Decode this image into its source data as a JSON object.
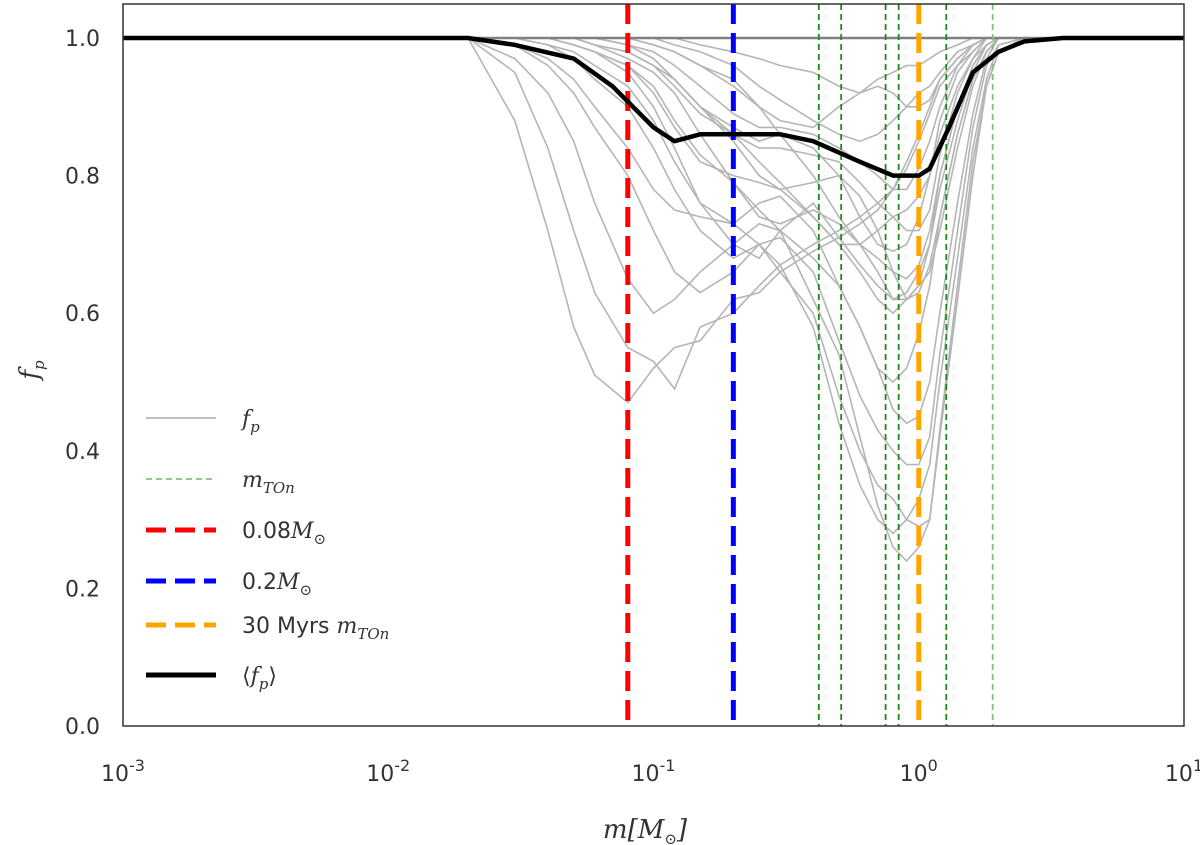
{
  "chart_data": {
    "type": "line",
    "title": "",
    "xlabel": {
      "main": "m[M",
      "sub": "⊙",
      "close": "]"
    },
    "ylabel": {
      "main": "f",
      "sub": "p"
    },
    "xscale": "log",
    "xlim": [
      0.001,
      10
    ],
    "ylim": [
      0.0,
      1.05
    ],
    "grid": false,
    "legend_position": "lower-left",
    "xticks": [
      {
        "value": 0.001,
        "base": "10",
        "exp": "-3"
      },
      {
        "value": 0.01,
        "base": "10",
        "exp": "-2"
      },
      {
        "value": 0.1,
        "base": "10",
        "exp": "-1"
      },
      {
        "value": 1,
        "base": "10",
        "exp": "0"
      },
      {
        "value": 10,
        "base": "10",
        "exp": "1"
      }
    ],
    "yticks": [
      {
        "value": 0.0,
        "label": "0.0"
      },
      {
        "value": 0.2,
        "label": "0.2"
      },
      {
        "value": 0.4,
        "label": "0.4"
      },
      {
        "value": 0.6,
        "label": "0.6"
      },
      {
        "value": 0.8,
        "label": "0.8"
      },
      {
        "value": 1.0,
        "label": "1.0"
      }
    ],
    "x": [
      0.001,
      0.01,
      0.02,
      0.03,
      0.04,
      0.05,
      0.06,
      0.08,
      0.1,
      0.12,
      0.15,
      0.2,
      0.25,
      0.3,
      0.4,
      0.5,
      0.6,
      0.7,
      0.8,
      0.9,
      1.0,
      1.1,
      1.2,
      1.4,
      1.6,
      1.8,
      2.0,
      2.5,
      3.0,
      4.0,
      10.0
    ],
    "individual_series": [
      [
        1,
        1,
        1,
        0.88,
        0.72,
        0.58,
        0.51,
        0.47,
        0.52,
        0.55,
        0.56,
        0.62,
        0.63,
        0.66,
        0.69,
        0.71,
        0.73,
        0.75,
        0.78,
        0.82,
        0.86,
        0.9,
        0.94,
        0.97,
        0.99,
        1,
        1,
        1,
        1,
        1,
        1
      ],
      [
        1,
        1,
        1,
        0.95,
        0.84,
        0.72,
        0.63,
        0.55,
        0.53,
        0.49,
        0.58,
        0.6,
        0.64,
        0.67,
        0.7,
        0.72,
        0.74,
        0.76,
        0.78,
        0.81,
        0.85,
        0.89,
        0.93,
        0.96,
        0.98,
        1,
        1,
        1,
        1,
        1,
        1
      ],
      [
        1,
        1,
        1,
        0.97,
        0.92,
        0.85,
        0.76,
        0.65,
        0.6,
        0.62,
        0.66,
        0.7,
        0.73,
        0.72,
        0.62,
        0.54,
        0.42,
        0.32,
        0.26,
        0.24,
        0.26,
        0.3,
        0.42,
        0.62,
        0.8,
        0.93,
        0.98,
        1,
        1,
        1,
        1
      ],
      [
        1,
        1,
        1,
        0.99,
        0.96,
        0.92,
        0.87,
        0.8,
        0.72,
        0.66,
        0.63,
        0.66,
        0.7,
        0.67,
        0.58,
        0.44,
        0.35,
        0.3,
        0.28,
        0.3,
        0.33,
        0.38,
        0.5,
        0.68,
        0.84,
        0.94,
        0.99,
        1,
        1,
        1,
        1
      ],
      [
        1,
        1,
        1,
        0.99,
        0.97,
        0.94,
        0.9,
        0.84,
        0.78,
        0.75,
        0.74,
        0.73,
        0.7,
        0.66,
        0.6,
        0.48,
        0.4,
        0.35,
        0.33,
        0.3,
        0.29,
        0.3,
        0.43,
        0.64,
        0.82,
        0.93,
        0.98,
        1,
        1,
        1,
        1
      ],
      [
        1,
        1,
        1,
        1,
        0.99,
        0.97,
        0.94,
        0.9,
        0.84,
        0.78,
        0.72,
        0.68,
        0.7,
        0.71,
        0.66,
        0.56,
        0.48,
        0.43,
        0.4,
        0.38,
        0.38,
        0.42,
        0.54,
        0.72,
        0.87,
        0.96,
        0.99,
        1,
        1,
        1,
        1
      ],
      [
        1,
        1,
        1,
        1,
        0.99,
        0.98,
        0.96,
        0.93,
        0.88,
        0.82,
        0.76,
        0.73,
        0.76,
        0.77,
        0.72,
        0.64,
        0.58,
        0.52,
        0.46,
        0.44,
        0.45,
        0.5,
        0.6,
        0.76,
        0.89,
        0.97,
        1,
        1,
        1,
        1,
        1
      ],
      [
        1,
        1,
        1,
        1,
        1,
        0.99,
        0.98,
        0.96,
        0.92,
        0.87,
        0.82,
        0.8,
        0.79,
        0.78,
        0.74,
        0.7,
        0.66,
        0.62,
        0.6,
        0.62,
        0.64,
        0.66,
        0.72,
        0.84,
        0.93,
        0.98,
        1,
        1,
        1,
        1,
        1
      ],
      [
        1,
        1,
        1,
        1,
        1,
        0.99,
        0.98,
        0.95,
        0.9,
        0.84,
        0.76,
        0.7,
        0.68,
        0.72,
        0.76,
        0.71,
        0.67,
        0.64,
        0.62,
        0.63,
        0.66,
        0.7,
        0.78,
        0.88,
        0.95,
        0.99,
        1,
        1,
        1,
        1,
        1
      ],
      [
        1,
        1,
        1,
        1,
        1,
        1,
        0.99,
        0.97,
        0.95,
        0.92,
        0.86,
        0.79,
        0.74,
        0.73,
        0.75,
        0.73,
        0.7,
        0.68,
        0.66,
        0.65,
        0.67,
        0.72,
        0.8,
        0.9,
        0.96,
        0.99,
        1,
        1,
        1,
        1,
        1
      ],
      [
        1,
        1,
        1,
        1,
        1,
        1,
        0.99,
        0.98,
        0.96,
        0.94,
        0.9,
        0.86,
        0.82,
        0.79,
        0.74,
        0.7,
        0.7,
        0.72,
        0.74,
        0.75,
        0.77,
        0.8,
        0.86,
        0.93,
        0.97,
        1,
        1,
        1,
        1,
        1,
        1
      ],
      [
        1,
        1,
        1,
        1,
        1,
        1,
        1,
        0.99,
        0.97,
        0.94,
        0.9,
        0.87,
        0.85,
        0.86,
        0.84,
        0.8,
        0.74,
        0.7,
        0.69,
        0.7,
        0.74,
        0.8,
        0.88,
        0.95,
        0.98,
        1,
        1,
        1,
        1,
        1,
        1
      ],
      [
        1,
        1,
        1,
        1,
        1,
        1,
        1,
        0.99,
        0.98,
        0.96,
        0.93,
        0.89,
        0.87,
        0.87,
        0.86,
        0.84,
        0.82,
        0.8,
        0.78,
        0.78,
        0.81,
        0.85,
        0.9,
        0.96,
        0.99,
        1,
        1,
        1,
        1,
        1,
        1
      ],
      [
        1,
        1,
        1,
        1,
        1,
        1,
        1,
        1,
        0.99,
        0.98,
        0.96,
        0.93,
        0.9,
        0.88,
        0.87,
        0.9,
        0.92,
        0.93,
        0.92,
        0.9,
        0.9,
        0.91,
        0.94,
        0.97,
        0.99,
        1,
        1,
        1,
        1,
        1,
        1
      ],
      [
        1,
        1,
        1,
        1,
        1,
        1,
        1,
        1,
        1,
        0.99,
        0.98,
        0.96,
        0.93,
        0.91,
        0.88,
        0.86,
        0.85,
        0.86,
        0.88,
        0.9,
        0.92,
        0.93,
        0.95,
        0.98,
        0.99,
        1,
        1,
        1,
        1,
        1,
        1
      ],
      [
        1,
        1,
        1,
        1,
        1,
        1,
        1,
        1,
        1,
        1,
        0.99,
        0.98,
        0.97,
        0.96,
        0.95,
        0.93,
        0.92,
        0.94,
        0.95,
        0.96,
        0.96,
        0.97,
        0.98,
        0.99,
        1,
        1,
        1,
        1,
        1,
        1,
        1
      ],
      [
        1,
        1,
        1,
        1,
        1,
        1,
        1,
        1,
        0.99,
        0.98,
        0.96,
        0.94,
        0.9,
        0.86,
        0.8,
        0.74,
        0.7,
        0.66,
        0.62,
        0.62,
        0.63,
        0.67,
        0.74,
        0.86,
        0.94,
        0.98,
        1,
        1,
        1,
        1,
        1
      ],
      [
        1,
        1,
        1,
        1,
        1,
        1,
        1,
        0.99,
        0.97,
        0.94,
        0.9,
        0.85,
        0.8,
        0.78,
        0.79,
        0.8,
        0.77,
        0.72,
        0.66,
        0.62,
        0.64,
        0.7,
        0.8,
        0.9,
        0.96,
        0.99,
        1,
        1,
        1,
        1,
        1
      ],
      [
        1,
        1,
        1,
        1,
        1,
        0.99,
        0.98,
        0.96,
        0.93,
        0.88,
        0.83,
        0.79,
        0.75,
        0.72,
        0.68,
        0.64,
        0.58,
        0.52,
        0.5,
        0.52,
        0.57,
        0.64,
        0.74,
        0.86,
        0.94,
        0.98,
        1,
        1,
        1,
        1,
        1
      ],
      [
        1,
        1,
        1,
        1,
        1,
        1,
        0.99,
        0.98,
        0.96,
        0.93,
        0.89,
        0.86,
        0.84,
        0.84,
        0.83,
        0.82,
        0.79,
        0.76,
        0.74,
        0.72,
        0.72,
        0.75,
        0.83,
        0.92,
        0.97,
        0.99,
        1,
        1,
        1,
        1,
        1
      ]
    ],
    "mean_series": {
      "x": [
        0.001,
        0.02,
        0.03,
        0.05,
        0.07,
        0.1,
        0.12,
        0.15,
        0.2,
        0.3,
        0.4,
        0.6,
        0.8,
        0.9,
        1.0,
        1.1,
        1.3,
        1.6,
        2.0,
        2.5,
        3.5,
        10.0
      ],
      "y": [
        1.0,
        1.0,
        0.99,
        0.97,
        0.93,
        0.87,
        0.85,
        0.86,
        0.86,
        0.86,
        0.85,
        0.82,
        0.8,
        0.8,
        0.8,
        0.81,
        0.87,
        0.95,
        0.98,
        0.995,
        1.0,
        1.0
      ]
    },
    "vlines": [
      {
        "x": 0.08,
        "color": "#ff0000",
        "style": "thick-dashed"
      },
      {
        "x": 0.2,
        "color": "#0000ff",
        "style": "thick-dashed"
      },
      {
        "x": 0.42,
        "color": "#1a8a1a",
        "style": "thin-dashed"
      },
      {
        "x": 0.51,
        "color": "#1a8a1a",
        "style": "thin-dashed"
      },
      {
        "x": 0.75,
        "color": "#1a8a1a",
        "style": "thin-dashed"
      },
      {
        "x": 0.84,
        "color": "#1a8a1a",
        "style": "thin-dashed"
      },
      {
        "x": 1.0,
        "color": "#ffa500",
        "style": "thick-dashed"
      },
      {
        "x": 1.27,
        "color": "#1a8a1a",
        "style": "thin-dashed"
      },
      {
        "x": 1.9,
        "color": "#7cc47c",
        "style": "thin-dashed"
      }
    ],
    "legend": [
      {
        "key": "fp",
        "main": "f",
        "sub": "p",
        "suffix": "",
        "color": "#b5b5b5",
        "style": "thin-solid"
      },
      {
        "key": "mton",
        "main": "m",
        "sub": "TOn",
        "suffix": "",
        "color": "#7cc47c",
        "style": "thin-dashed"
      },
      {
        "key": "red",
        "prefix": "0.08",
        "main": "M",
        "sub": "⊙",
        "color": "#ff0000",
        "style": "thick-dashed"
      },
      {
        "key": "blue",
        "prefix": "0.2",
        "main": "M",
        "sub": "⊙",
        "color": "#0000ff",
        "style": "thick-dashed"
      },
      {
        "key": "orange",
        "prefix": "30 Myrs ",
        "main": "m",
        "sub": "TOn",
        "color": "#ffa500",
        "style": "thick-dashed"
      },
      {
        "key": "mean",
        "open": "⟨",
        "main": "f",
        "sub": "p",
        "close": "⟩",
        "color": "#000000",
        "style": "thick-solid"
      }
    ],
    "colors": {
      "individual": "#b5b5b5",
      "mean": "#000000",
      "reference": "#808080"
    }
  }
}
